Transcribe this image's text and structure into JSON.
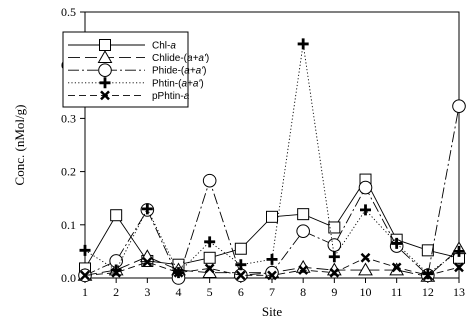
{
  "chart_data": {
    "type": "line",
    "title": "",
    "xlabel": "Site",
    "ylabel": "Conc. (nMol/g)",
    "x": [
      1,
      2,
      3,
      4,
      5,
      6,
      7,
      8,
      9,
      10,
      11,
      12,
      13
    ],
    "xlim": [
      1,
      13
    ],
    "ylim": [
      0.0,
      0.5
    ],
    "yticks": [
      "0.0",
      "0.1",
      "0.2",
      "0.3",
      "0.4",
      "0.5"
    ],
    "grid": false,
    "legend_position": "top-left",
    "series": [
      {
        "name": "Chl-a",
        "name_base": "Chl-",
        "name_italic": "a",
        "name_suffix": "",
        "marker": "square",
        "dash": "solid",
        "values": [
          0.018,
          0.118,
          0.032,
          0.025,
          0.038,
          0.055,
          0.115,
          0.12,
          0.095,
          0.185,
          0.072,
          0.052,
          0.038
        ]
      },
      {
        "name": "Chlide-(a+a')",
        "name_base": "Chlide-(",
        "name_italic": "a+a'",
        "name_suffix": ")",
        "marker": "triangle",
        "dash": "long-dash",
        "values": [
          0.005,
          0.015,
          0.04,
          0.015,
          0.01,
          0.01,
          0.01,
          0.02,
          0.015,
          0.015,
          0.015,
          0.003,
          0.055
        ]
      },
      {
        "name": "Phide-(a+a')",
        "name_base": "Phide-(",
        "name_italic": "a+a'",
        "name_suffix": ")",
        "marker": "circle",
        "dash": "dash-dot",
        "values": [
          0.005,
          0.032,
          0.128,
          0.0,
          0.183,
          0.005,
          0.01,
          0.088,
          0.062,
          0.17,
          0.06,
          0.005,
          0.323
        ]
      },
      {
        "name": "Phtin-(a+a')",
        "name_base": "Phtin-(",
        "name_italic": "a+a'",
        "name_suffix": ")",
        "marker": "plus",
        "dash": "dotted",
        "values": [
          0.052,
          0.015,
          0.13,
          0.01,
          0.068,
          0.025,
          0.035,
          0.44,
          0.04,
          0.128,
          0.065,
          0.008,
          0.05
        ]
      },
      {
        "name": "pPhtin-a",
        "name_base": "pPhtin-",
        "name_italic": "a",
        "name_suffix": "",
        "marker": "x",
        "dash": "medium-dash",
        "values": [
          0.005,
          0.01,
          0.03,
          0.01,
          0.018,
          0.005,
          0.005,
          0.015,
          0.01,
          0.038,
          0.02,
          0.005,
          0.02
        ]
      }
    ]
  }
}
